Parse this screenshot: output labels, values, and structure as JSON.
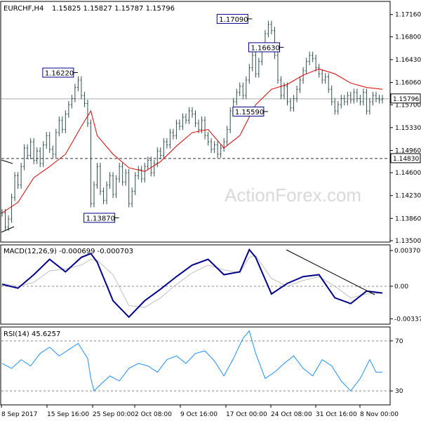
{
  "chart_data": [
    {
      "type": "line",
      "panel": "price",
      "title": "EURCHF,H4",
      "ohlc_header": "1.15825 1.15827 1.15787 1.15796",
      "ylim": [
        1.135,
        1.1735
      ],
      "y_ticks": [
        "1.17160",
        "1.16800",
        "1.16430",
        "1.16060",
        "1.15700",
        "1.15330",
        "1.14960",
        "1.14600",
        "1.14230",
        "1.13860",
        "1.13500"
      ],
      "x_tick_labels": [
        "8 Sep 2017",
        "15 Sep 16:00",
        "25 Sep 00:00",
        "2 Oct 08:00",
        "9 Oct 16:00",
        "17 Oct 00:00",
        "24 Oct 08:00",
        "31 Oct 16:00",
        "8 Nov 00:00"
      ],
      "series": [
        {
          "type": "bar_ohlc",
          "color": "#2f4f4f",
          "x": [
            0,
            2,
            4,
            6,
            8,
            10,
            12,
            14,
            16,
            18,
            20,
            22,
            24,
            26,
            28,
            30,
            32,
            34,
            36,
            38,
            40,
            42,
            44,
            46,
            48,
            50,
            52,
            54,
            56,
            58,
            60,
            62,
            64,
            66,
            68,
            70,
            72,
            74,
            76,
            78,
            80,
            82,
            84,
            86,
            88,
            90,
            92,
            94,
            96,
            98,
            100,
            102,
            104,
            106,
            108,
            110,
            112,
            114,
            116,
            118,
            120,
            122,
            124,
            126,
            128,
            130,
            132,
            134,
            136,
            138,
            140,
            142,
            144,
            146,
            148,
            150,
            152,
            154,
            156,
            158,
            160,
            162,
            164,
            166,
            168,
            170,
            172,
            174,
            176,
            178,
            180,
            182,
            184,
            186,
            188,
            190,
            192,
            194,
            196,
            198,
            200,
            202,
            204,
            206,
            208,
            210,
            212,
            214,
            216,
            218,
            220,
            222,
            224,
            226,
            228,
            230,
            232,
            234,
            236,
            238,
            240
          ],
          "close": [
            1.1395,
            1.1372,
            1.1385,
            1.142,
            1.1455,
            1.144,
            1.147,
            1.15,
            1.1488,
            1.151,
            1.148,
            1.1495,
            1.1475,
            1.1505,
            1.152,
            1.1498,
            1.149,
            1.1525,
            1.1545,
            1.153,
            1.1555,
            1.157,
            1.158,
            1.1598,
            1.161,
            1.1585,
            1.1572,
            1.154,
            1.141,
            1.144,
            1.147,
            1.143,
            1.1415,
            1.144,
            1.1455,
            1.1425,
            1.145,
            1.147,
            1.1445,
            1.146,
            1.141,
            1.143,
            1.1455,
            1.1465,
            1.145,
            1.147,
            1.148,
            1.146,
            1.1475,
            1.1495,
            1.1488,
            1.151,
            1.1505,
            1.1525,
            1.152,
            1.154,
            1.1535,
            1.155,
            1.1545,
            1.156,
            1.1555,
            1.154,
            1.153,
            1.1545,
            1.152,
            1.151,
            1.1498,
            1.1505,
            1.149,
            1.15,
            1.151,
            1.153,
            1.156,
            1.1575,
            1.159,
            1.16,
            1.1585,
            1.161,
            1.163,
            1.165,
            1.162,
            1.164,
            1.1665,
            1.1685,
            1.17,
            1.169,
            1.165,
            1.161,
            1.1585,
            1.16,
            1.1575,
            1.1565,
            1.158,
            1.1595,
            1.161,
            1.1625,
            1.164,
            1.165,
            1.1645,
            1.163,
            1.162,
            1.161,
            1.1615,
            1.1595,
            1.1575,
            1.156,
            1.157,
            1.158,
            1.1575,
            1.1585,
            1.1578,
            1.159,
            1.158,
            1.1575,
            1.159,
            1.156,
            1.1575,
            1.1585,
            1.158,
            1.1578,
            1.158
          ]
        },
        {
          "name": "",
          "type": "line",
          "color": "#dd0000",
          "x": [
            0,
            10,
            20,
            30,
            40,
            50,
            56,
            60,
            70,
            80,
            90,
            100,
            110,
            120,
            130,
            140,
            150,
            156,
            160,
            170,
            180,
            190,
            200,
            210,
            220,
            230,
            240
          ],
          "y": [
            1.1395,
            1.1412,
            1.1452,
            1.147,
            1.149,
            1.1535,
            1.156,
            1.152,
            1.149,
            1.1468,
            1.1462,
            1.1478,
            1.1503,
            1.1525,
            1.153,
            1.15,
            1.152,
            1.155,
            1.157,
            1.1595,
            1.1603,
            1.1618,
            1.1628,
            1.162,
            1.1605,
            1.1598,
            1.1595
          ]
        }
      ],
      "annotations": [
        {
          "label": "1.17090",
          "x": 156,
          "y": 1.1709
        },
        {
          "label": "1.16630",
          "x": 176,
          "y": 1.1663
        },
        {
          "label": "1.16220",
          "x": 46,
          "y": 1.1622
        },
        {
          "label": "1.15590",
          "x": 166,
          "y": 1.1559
        },
        {
          "label": "1.13870",
          "x": 72,
          "y": 1.1387
        }
      ],
      "level_lines": [
        {
          "label": "1.15796",
          "value": 1.15796,
          "style": "solid"
        },
        {
          "label": "1.14830",
          "value": 1.1483,
          "style": "dashed"
        }
      ],
      "watermark": "ActionForex.com"
    },
    {
      "type": "line",
      "panel": "macd",
      "title": "MACD(12,26,9) -0.000699 -0.000703",
      "ylim": [
        -0.00379,
        0.00415
      ],
      "y_ticks": [
        "0.003705",
        "0.00",
        "-0.003379"
      ],
      "series": [
        {
          "name": "",
          "color": "#00008b",
          "x": [
            0,
            10,
            20,
            30,
            40,
            50,
            56,
            60,
            70,
            80,
            90,
            100,
            110,
            120,
            130,
            140,
            150,
            156,
            160,
            170,
            180,
            190,
            200,
            210,
            220,
            230,
            240
          ],
          "y": [
            0.0002,
            -0.0002,
            0.0012,
            0.0028,
            0.0015,
            0.003,
            0.0034,
            0.0025,
            -0.0015,
            -0.0032,
            -0.0015,
            -0.0003,
            0.001,
            0.0022,
            0.0028,
            0.0012,
            0.0015,
            0.0038,
            0.003,
            -0.0008,
            0.0003,
            0.001,
            0.0012,
            -0.0012,
            -0.0018,
            -0.0005,
            -0.0007
          ]
        },
        {
          "name": "",
          "color": "#c0c0c0",
          "x": [
            0,
            10,
            20,
            30,
            40,
            50,
            56,
            60,
            70,
            80,
            90,
            100,
            110,
            120,
            130,
            140,
            150,
            156,
            160,
            170,
            180,
            190,
            200,
            210,
            220,
            230,
            240
          ],
          "y": [
            0.0003,
            0.0,
            0.0004,
            0.0016,
            0.0018,
            0.0022,
            0.0028,
            0.0027,
            0.0012,
            -0.002,
            -0.0022,
            -0.0012,
            0.0002,
            0.0014,
            0.0022,
            0.0017,
            0.0014,
            0.003,
            0.0032,
            0.0008,
            0.0,
            0.0006,
            0.001,
            0.0,
            -0.0012,
            -0.0008,
            -0.0007
          ]
        }
      ]
    },
    {
      "type": "line",
      "panel": "rsi",
      "title": "RSI(14) 45.6257",
      "ylim": [
        20,
        80
      ],
      "y_ticks": [
        "70",
        "30"
      ],
      "series": [
        {
          "name": "",
          "color": "#1e90ff",
          "x": [
            0,
            6,
            12,
            18,
            24,
            30,
            36,
            42,
            48,
            54,
            56,
            58,
            62,
            68,
            74,
            80,
            86,
            92,
            98,
            104,
            110,
            116,
            122,
            128,
            134,
            140,
            146,
            152,
            156,
            160,
            166,
            172,
            178,
            184,
            190,
            196,
            202,
            208,
            214,
            220,
            226,
            232,
            236,
            240
          ],
          "y": [
            52,
            48,
            55,
            50,
            60,
            65,
            58,
            63,
            68,
            56,
            40,
            30,
            35,
            42,
            38,
            48,
            52,
            50,
            45,
            55,
            58,
            52,
            60,
            62,
            54,
            42,
            56,
            72,
            78,
            60,
            40,
            45,
            52,
            58,
            48,
            42,
            55,
            50,
            38,
            30,
            40,
            55,
            45,
            45
          ]
        }
      ]
    }
  ]
}
